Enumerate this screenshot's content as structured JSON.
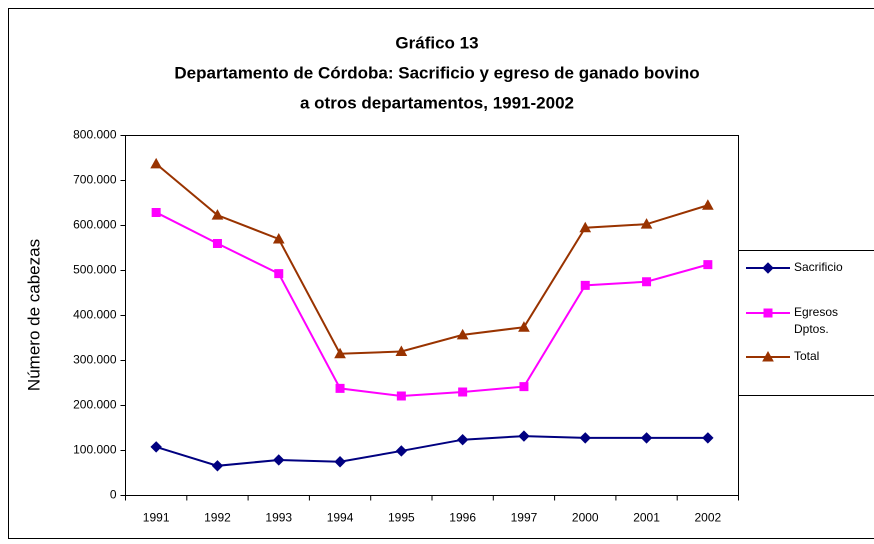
{
  "chart_data": {
    "type": "line",
    "title": [
      "Gráfico 13",
      "Departamento de Córdoba: Sacrificio y egreso de ganado bovino",
      "a otros departamentos, 1991-2002"
    ],
    "y_label": "Número de cabezas",
    "categories": [
      "1991",
      "1992",
      "1993",
      "1994",
      "1995",
      "1996",
      "1997",
      "2000",
      "2001",
      "2002"
    ],
    "series": [
      {
        "name": "Sacrificio",
        "color": "#000080",
        "marker": "diamond",
        "values": [
          108000,
          66000,
          79000,
          75000,
          99000,
          124000,
          132000,
          128000,
          128000,
          128000
        ]
      },
      {
        "name": "Egresos Dptos.",
        "color": "#ff00ff",
        "marker": "square",
        "values": [
          629000,
          560000,
          493000,
          238000,
          221000,
          230000,
          242000,
          467000,
          475000,
          513000
        ]
      },
      {
        "name": "Total",
        "color": "#993300",
        "marker": "triangle",
        "values": [
          737000,
          623000,
          570000,
          315000,
          320000,
          357000,
          374000,
          595000,
          603000,
          645000
        ]
      }
    ],
    "ylim": [
      0,
      800000
    ],
    "yticks": [
      0,
      {
        "value": 100000,
        "label": "100.000"
      },
      {
        "value": 200000,
        "label": "200.000"
      },
      {
        "value": 300000,
        "label": "300.000"
      },
      {
        "value": 400000,
        "label": "400.000"
      },
      {
        "value": 500000,
        "label": "500.000"
      },
      {
        "value": 600000,
        "label": "600.000"
      },
      {
        "value": 700000,
        "label": "700.000"
      },
      {
        "value": 800000,
        "label": "800.000"
      }
    ],
    "legend": "right"
  }
}
